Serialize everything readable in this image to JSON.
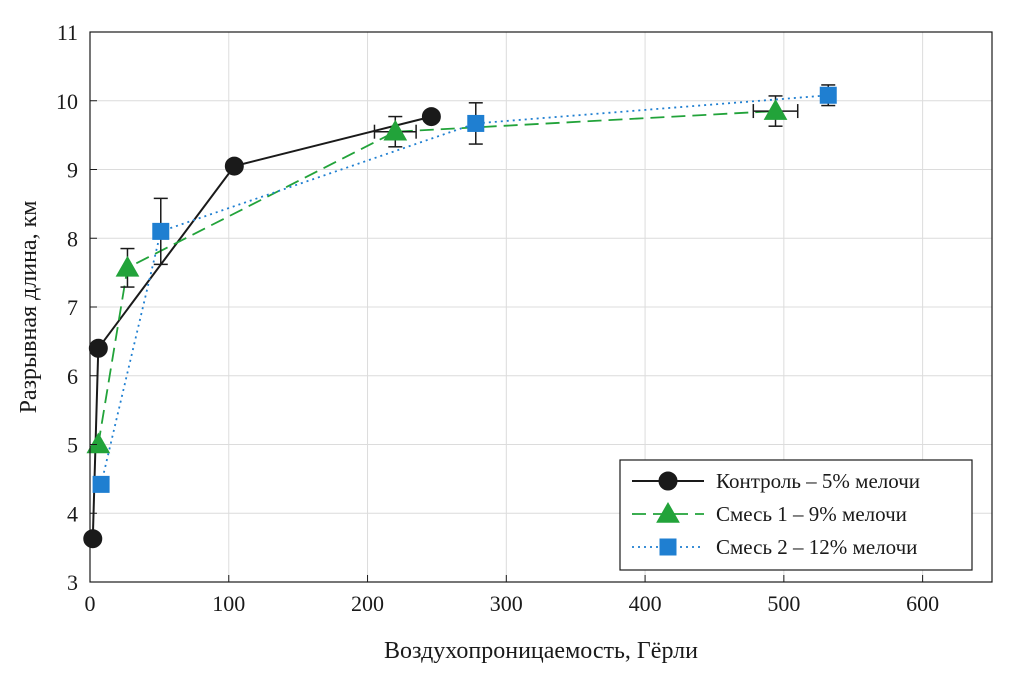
{
  "chart_data": {
    "type": "line",
    "title": "",
    "xlabel": "Воздухопроницаемость, Гёрли",
    "ylabel": "Разрывная длина, км",
    "xlim": [
      0,
      650
    ],
    "ylim": [
      3,
      11
    ],
    "xticks": [
      0,
      100,
      200,
      300,
      400,
      500,
      600
    ],
    "yticks": [
      3,
      4,
      5,
      6,
      7,
      8,
      9,
      10,
      11
    ],
    "grid": true,
    "legend_position": "bottom-right",
    "series": [
      {
        "name": "Контроль – 5% мелочи",
        "color": "#1a1a1a",
        "line_style": "solid",
        "marker": "circle",
        "points": [
          {
            "x": 2,
            "y": 3.63
          },
          {
            "x": 6,
            "y": 6.4
          },
          {
            "x": 104,
            "y": 9.05
          },
          {
            "x": 246,
            "y": 9.77
          }
        ]
      },
      {
        "name": "Смесь 1 – 9% мелочи",
        "color": "#22a33a",
        "line_style": "dashed",
        "marker": "triangle",
        "points": [
          {
            "x": 6,
            "y": 5.0
          },
          {
            "x": 27,
            "y": 7.57,
            "yerr": 0.28
          },
          {
            "x": 220,
            "y": 9.55,
            "yerr": 0.22,
            "xerr": 15
          },
          {
            "x": 494,
            "y": 9.85,
            "yerr": 0.22,
            "xerr": 16
          }
        ]
      },
      {
        "name": "Смесь 2 – 12% мелочи",
        "color": "#1f7fd1",
        "line_style": "dotted",
        "marker": "square",
        "points": [
          {
            "x": 8,
            "y": 4.42
          },
          {
            "x": 51,
            "y": 8.1,
            "yerr": 0.48
          },
          {
            "x": 278,
            "y": 9.67,
            "yerr": 0.3
          },
          {
            "x": 532,
            "y": 10.08,
            "yerr": 0.15
          }
        ]
      }
    ]
  }
}
